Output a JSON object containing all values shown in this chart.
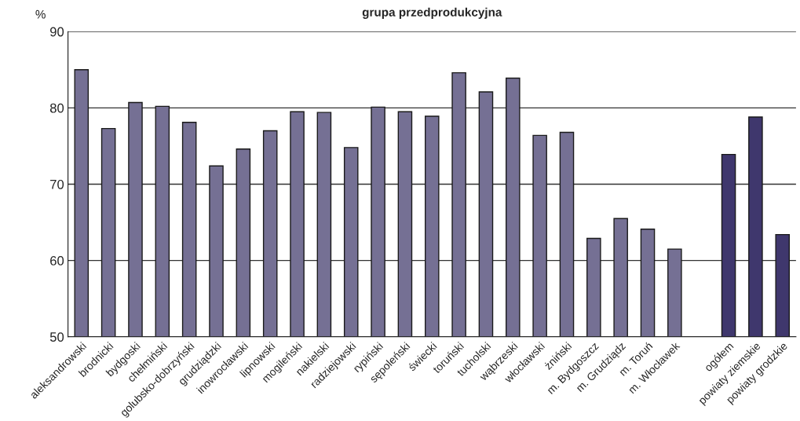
{
  "chart_data": {
    "type": "bar",
    "title": "grupa przedprodukcyjna",
    "ylabel": "%",
    "categories": [
      "aleksandrowski",
      "brodnicki",
      "bydgoski",
      "chełmiński",
      "golubsko-dobrzyński",
      "grudziądzki",
      "inowrocławski",
      "lipnowski",
      "mogileński",
      "nakielski",
      "radziejowski",
      "rypiński",
      "sępoleński",
      "świecki",
      "toruński",
      "tucholski",
      "wąbrzeski",
      "włocławski",
      "żniński",
      "m. Bydgoszcz",
      "m. Grudziądz",
      "m. Toruń",
      "m. Włocławek",
      null,
      "ogółem",
      "powiaty ziemskie",
      "powiaty grodzkie"
    ],
    "values": [
      85.0,
      77.3,
      80.7,
      80.2,
      78.1,
      72.4,
      74.6,
      77.0,
      79.5,
      79.4,
      74.8,
      80.1,
      79.5,
      78.9,
      84.6,
      82.1,
      83.9,
      76.4,
      76.8,
      62.9,
      65.5,
      64.1,
      61.5,
      null,
      73.9,
      78.8,
      63.4
    ],
    "colors": [
      "#757094",
      "#757094",
      "#757094",
      "#757094",
      "#757094",
      "#757094",
      "#757094",
      "#757094",
      "#757094",
      "#757094",
      "#757094",
      "#757094",
      "#757094",
      "#757094",
      "#757094",
      "#757094",
      "#757094",
      "#757094",
      "#757094",
      "#757094",
      "#757094",
      "#757094",
      "#757094",
      null,
      "#3f376d",
      "#3f376d",
      "#3f376d"
    ],
    "ylim": [
      50,
      90
    ],
    "yticks": [
      50,
      60,
      70,
      80,
      90
    ],
    "grid": "y"
  }
}
